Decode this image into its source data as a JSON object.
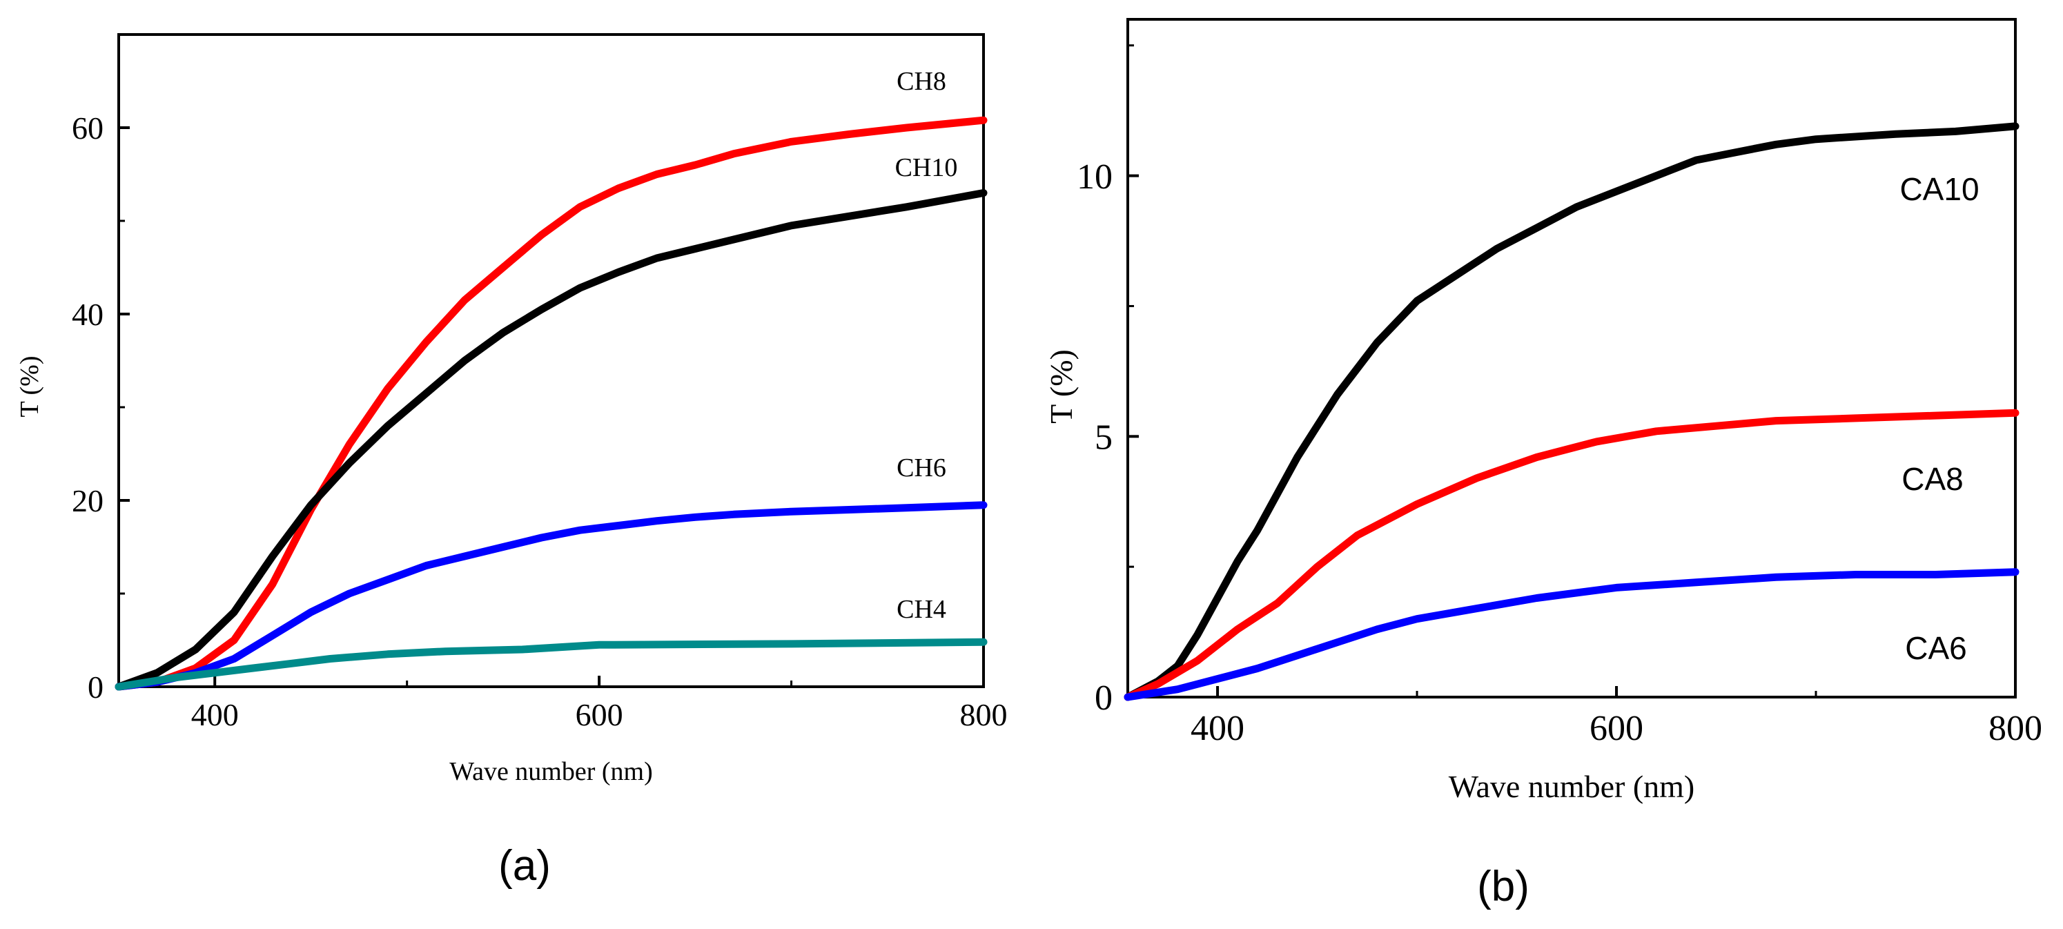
{
  "chart_data": [
    {
      "id": "a",
      "type": "line",
      "caption": "(a)",
      "xlabel": "Wave number (nm)",
      "ylabel": "T  (%)",
      "xlim": [
        350,
        800
      ],
      "ylim": [
        0,
        70
      ],
      "xticks": [
        400,
        600,
        800
      ],
      "yticks": [
        0,
        20,
        40,
        60
      ],
      "grid": false,
      "series": [
        {
          "name": "CH8",
          "color": "#ff0000",
          "x": [
            350,
            370,
            390,
            410,
            430,
            450,
            470,
            490,
            510,
            530,
            550,
            570,
            590,
            610,
            630,
            650,
            670,
            700,
            730,
            760,
            800
          ],
          "y": [
            0,
            0.5,
            2,
            5,
            11,
            19,
            26,
            32,
            37,
            41.5,
            45,
            48.5,
            51.5,
            53.5,
            55,
            56,
            57.2,
            58.5,
            59.3,
            60,
            60.8
          ]
        },
        {
          "name": "CH10",
          "color": "#000000",
          "x": [
            350,
            370,
            390,
            410,
            430,
            450,
            470,
            490,
            510,
            530,
            550,
            570,
            590,
            610,
            630,
            650,
            670,
            700,
            730,
            760,
            800
          ],
          "y": [
            0,
            1.5,
            4,
            8,
            14,
            19.5,
            24,
            28,
            31.5,
            35,
            38,
            40.5,
            42.8,
            44.5,
            46,
            47,
            48,
            49.5,
            50.5,
            51.5,
            53
          ]
        },
        {
          "name": "CH6",
          "color": "#0000ff",
          "x": [
            350,
            370,
            390,
            410,
            430,
            450,
            470,
            490,
            510,
            530,
            550,
            570,
            590,
            610,
            630,
            650,
            670,
            700,
            730,
            760,
            800
          ],
          "y": [
            0,
            0.5,
            1.5,
            3,
            5.5,
            8,
            10,
            11.5,
            13,
            14,
            15,
            16,
            16.8,
            17.3,
            17.8,
            18.2,
            18.5,
            18.8,
            19,
            19.2,
            19.5
          ]
        },
        {
          "name": "CH4",
          "color": "#008b8b",
          "x": [
            350,
            380,
            400,
            420,
            440,
            460,
            490,
            520,
            560,
            600,
            700,
            800
          ],
          "y": [
            0,
            1,
            1.5,
            2,
            2.5,
            3,
            3.5,
            3.8,
            4,
            4.5,
            4.6,
            4.8
          ]
        }
      ],
      "labels": [
        {
          "text": "CH8",
          "series": "CH8"
        },
        {
          "text": "CH10",
          "series": "CH10"
        },
        {
          "text": "CH6",
          "series": "CH6"
        },
        {
          "text": "CH4",
          "series": "CH4"
        }
      ]
    },
    {
      "id": "b",
      "type": "line",
      "caption": "(b)",
      "xlabel": "Wave number (nm)",
      "ylabel": "T  (%)",
      "xlim": [
        355,
        800
      ],
      "ylim": [
        0,
        13
      ],
      "xticks": [
        400,
        600,
        800
      ],
      "yticks": [
        0,
        5,
        10
      ],
      "grid": false,
      "series": [
        {
          "name": "CA10",
          "color": "#000000",
          "x": [
            355,
            370,
            380,
            390,
            400,
            410,
            420,
            430,
            440,
            450,
            460,
            470,
            480,
            490,
            500,
            520,
            540,
            560,
            580,
            600,
            620,
            640,
            660,
            680,
            700,
            740,
            770,
            800
          ],
          "y": [
            0,
            0.3,
            0.6,
            1.2,
            1.9,
            2.6,
            3.2,
            3.9,
            4.6,
            5.2,
            5.8,
            6.3,
            6.8,
            7.2,
            7.6,
            8.1,
            8.6,
            9.0,
            9.4,
            9.7,
            10.0,
            10.3,
            10.45,
            10.6,
            10.7,
            10.8,
            10.85,
            10.95
          ]
        },
        {
          "name": "CA8",
          "color": "#ff0000",
          "x": [
            355,
            370,
            390,
            410,
            430,
            450,
            470,
            500,
            530,
            560,
            590,
            620,
            650,
            680,
            720,
            760,
            800
          ],
          "y": [
            0,
            0.25,
            0.7,
            1.3,
            1.8,
            2.5,
            3.1,
            3.7,
            4.2,
            4.6,
            4.9,
            5.1,
            5.2,
            5.3,
            5.35,
            5.4,
            5.45
          ]
        },
        {
          "name": "CA6",
          "color": "#0000ff",
          "x": [
            355,
            380,
            400,
            420,
            440,
            460,
            480,
            500,
            530,
            560,
            600,
            640,
            680,
            720,
            760,
            800
          ],
          "y": [
            0,
            0.15,
            0.35,
            0.55,
            0.8,
            1.05,
            1.3,
            1.5,
            1.7,
            1.9,
            2.1,
            2.2,
            2.3,
            2.35,
            2.35,
            2.4
          ]
        }
      ],
      "labels": [
        {
          "text": "CA10",
          "series": "CA10"
        },
        {
          "text": "CA8",
          "series": "CA8"
        },
        {
          "text": "CA6",
          "series": "CA6"
        }
      ]
    }
  ]
}
